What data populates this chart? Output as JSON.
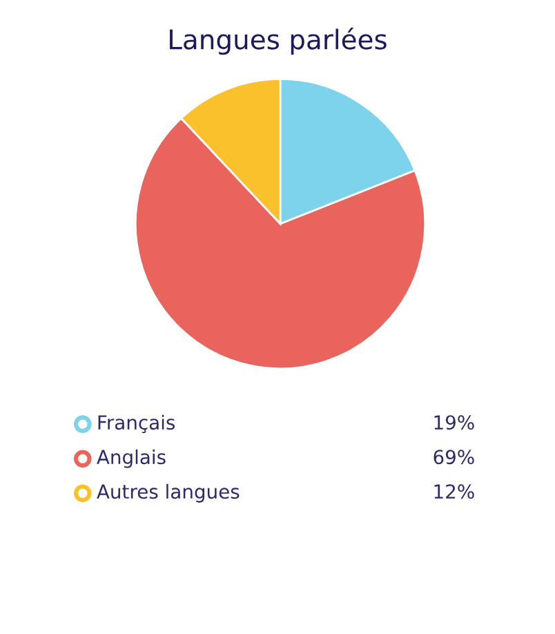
{
  "chart_data": {
    "type": "pie",
    "title": "Langues parlées",
    "categories": [
      "Français",
      "Anglais",
      "Autres langues"
    ],
    "values": [
      19,
      69,
      12
    ],
    "value_labels": [
      "19%",
      "69%",
      "12%"
    ],
    "colors": [
      "#7dd3ec",
      "#e8645c",
      "#fbc12d"
    ],
    "legend": "bottom"
  }
}
